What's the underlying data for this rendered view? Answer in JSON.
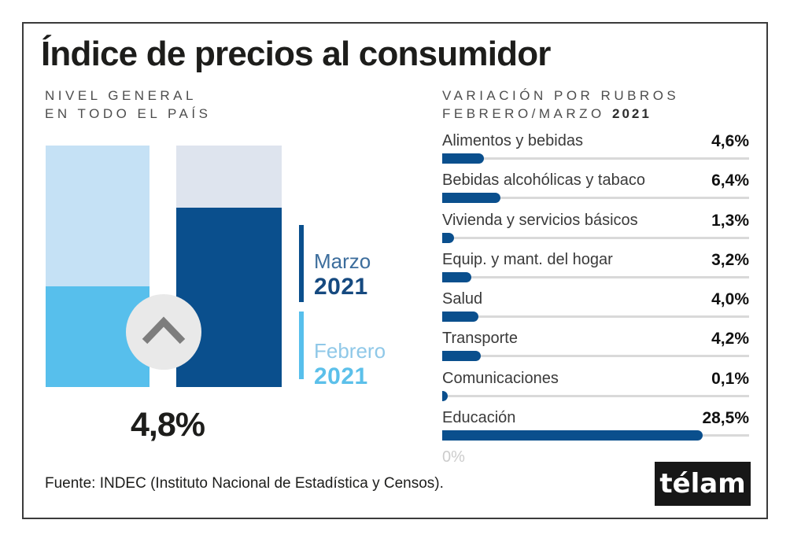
{
  "header": {
    "title": "Índice de precios al consumidor"
  },
  "left_panel": {
    "subtitle_line1": "NIVEL GENERAL",
    "subtitle_line2": "EN TODO EL PAÍS",
    "big_value_label": "4,8%",
    "legend": {
      "marzo_month": "Marzo",
      "marzo_year": "2021",
      "febrero_month": "Febrero",
      "febrero_year": "2021"
    }
  },
  "right_panel": {
    "heading_line1": "VARIACIÓN POR RUBROS",
    "heading_line2": "FEBRERO/MARZO ",
    "heading_year": "2021",
    "axis_zero_label": "0%",
    "items": [
      {
        "label": "Alimentos y bebidas",
        "value": 4.6,
        "value_label": "4,6%"
      },
      {
        "label": "Bebidas alcohólicas y tabaco",
        "value": 6.4,
        "value_label": "6,4%"
      },
      {
        "label": "Vivienda y servicios básicos",
        "value": 1.3,
        "value_label": "1,3%"
      },
      {
        "label": "Equip. y mant. del hogar",
        "value": 3.2,
        "value_label": "3,2%"
      },
      {
        "label": "Salud",
        "value": 4.0,
        "value_label": "4,0%"
      },
      {
        "label": "Transporte",
        "value": 4.2,
        "value_label": "4,2%"
      },
      {
        "label": "Comunicaciones",
        "value": 0.1,
        "value_label": "0,1%"
      },
      {
        "label": "Educación",
        "value": 28.5,
        "value_label": "28,5%"
      }
    ]
  },
  "footer": {
    "source": "Fuente: INDEC (Instituto Nacional de Estadística y Censos).",
    "logo_text": "télam"
  },
  "colors": {
    "dark_blue": "#0a4f8d",
    "light_blue": "#57bfec",
    "pale_blue": "#c5e1f5",
    "pale_gray_blue": "#dee4ee",
    "track_gray": "#d9d9d9",
    "frame_border": "#3b3b3b"
  },
  "chart_data": [
    {
      "type": "bar",
      "title": "NIVEL GENERAL EN TODO EL PAÍS",
      "categories": [
        "Febrero 2021",
        "Marzo 2021"
      ],
      "series": [
        {
          "name": "Nivel general",
          "values": [
            null,
            4.8
          ]
        }
      ],
      "annotations": [
        "4,8%"
      ],
      "notes": "Only Marzo 2021 value (4,8%) is labeled; bars are stylized with pale projection tops and an up-chevron badge between them.",
      "legend_position": "right"
    },
    {
      "type": "bar",
      "orientation": "horizontal",
      "title": "VARIACIÓN POR RUBROS FEBRERO/MARZO 2021",
      "categories": [
        "Alimentos y bebidas",
        "Bebidas alcohólicas y tabaco",
        "Vivienda y servicios básicos",
        "Equip. y mant. del hogar",
        "Salud",
        "Transporte",
        "Comunicaciones",
        "Educación"
      ],
      "values": [
        4.6,
        6.4,
        1.3,
        3.2,
        4.0,
        4.2,
        0.1,
        28.5
      ],
      "xlabel": "",
      "ylabel": "",
      "xlim": [
        0,
        33.5
      ],
      "tick_labels": [
        "0%"
      ],
      "grid": false,
      "legend_position": "none"
    }
  ]
}
